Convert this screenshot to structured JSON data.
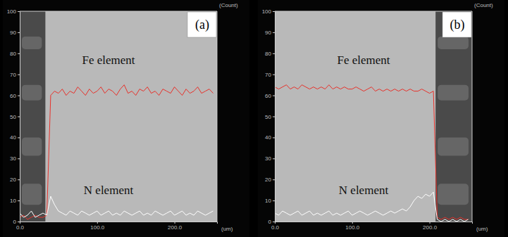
{
  "chart_data": [
    {
      "type": "line",
      "title": "(a)",
      "x_label": "(um)",
      "y_label": "(Count)",
      "x": [
        0,
        5,
        10,
        15,
        20,
        25,
        30,
        35,
        40,
        45,
        50,
        55,
        60,
        65,
        70,
        75,
        80,
        85,
        90,
        95,
        100,
        105,
        110,
        115,
        120,
        125,
        130,
        135,
        140,
        145,
        150,
        155,
        160,
        165,
        170,
        175,
        180,
        185,
        190,
        195,
        200,
        205,
        210,
        215,
        220,
        225,
        230,
        235,
        240,
        245,
        250
      ],
      "series": [
        {
          "name": "Fe element",
          "color": "#e8312a",
          "values": [
            2,
            3,
            1,
            2,
            3,
            2,
            2,
            3,
            60,
            62,
            61,
            63,
            60,
            62,
            61,
            64,
            62,
            60,
            63,
            61,
            62,
            64,
            61,
            63,
            62,
            60,
            63,
            65,
            61,
            62,
            60,
            63,
            62,
            64,
            61,
            62,
            60,
            63,
            62,
            61,
            64,
            62,
            60,
            63,
            61,
            62,
            64,
            61,
            62,
            63,
            61
          ]
        },
        {
          "name": "N element",
          "color": "#ffffff",
          "values": [
            4,
            2,
            3,
            5,
            2,
            3,
            4,
            3,
            12,
            8,
            5,
            4,
            3,
            5,
            4,
            3,
            5,
            4,
            3,
            4,
            5,
            3,
            4,
            5,
            3,
            4,
            3,
            5,
            4,
            3,
            4,
            5,
            3,
            4,
            3,
            5,
            4,
            3,
            4,
            5,
            3,
            4,
            5,
            3,
            4,
            3,
            5,
            4,
            3,
            4,
            5
          ]
        }
      ],
      "xlim": [
        0,
        255
      ],
      "xticks": [
        {
          "value": 0,
          "label": "0.0"
        },
        {
          "value": 100,
          "label": "100.0"
        },
        {
          "value": 200,
          "label": "200.0"
        }
      ],
      "ylim": [
        0,
        100
      ],
      "yticks": [
        0,
        10,
        20,
        30,
        40,
        50,
        60,
        70,
        80,
        90,
        100
      ],
      "grid": false
    },
    {
      "type": "line",
      "title": "(b)",
      "x_label": "(um)",
      "y_label": "(Count)",
      "x": [
        0,
        5,
        10,
        15,
        20,
        25,
        30,
        35,
        40,
        45,
        50,
        55,
        60,
        65,
        70,
        75,
        80,
        85,
        90,
        95,
        100,
        105,
        110,
        115,
        120,
        125,
        130,
        135,
        140,
        145,
        150,
        155,
        160,
        165,
        170,
        175,
        180,
        185,
        190,
        195,
        200,
        205,
        210,
        215,
        220,
        225,
        230,
        235,
        240,
        245,
        250
      ],
      "series": [
        {
          "name": "Fe element",
          "color": "#e8312a",
          "values": [
            64,
            63,
            64,
            65,
            63,
            64,
            63,
            65,
            64,
            63,
            64,
            63,
            64,
            63,
            65,
            63,
            64,
            63,
            64,
            63,
            63,
            64,
            63,
            62,
            63,
            64,
            62,
            63,
            62,
            63,
            62,
            63,
            62,
            63,
            62,
            63,
            62,
            62,
            63,
            62,
            61,
            62,
            2,
            1,
            2,
            1,
            2,
            1,
            2,
            1,
            1
          ]
        },
        {
          "name": "N element",
          "color": "#ffffff",
          "values": [
            4,
            3,
            5,
            4,
            3,
            4,
            5,
            3,
            4,
            5,
            3,
            4,
            3,
            4,
            5,
            3,
            4,
            3,
            4,
            5,
            3,
            4,
            5,
            4,
            3,
            4,
            5,
            4,
            3,
            4,
            5,
            4,
            5,
            6,
            5,
            7,
            10,
            12,
            11,
            13,
            12,
            14,
            1,
            0,
            1,
            0,
            1,
            0,
            1,
            0,
            1
          ]
        }
      ],
      "xlim": [
        0,
        255
      ],
      "xticks": [
        {
          "value": 0,
          "label": "0.0"
        },
        {
          "value": 100,
          "label": "100.0"
        },
        {
          "value": 200,
          "label": "200.0"
        }
      ],
      "ylim": [
        0,
        100
      ],
      "yticks": [
        0,
        10,
        20,
        30,
        40,
        50,
        60,
        70,
        80,
        90,
        100
      ],
      "grid": false
    }
  ]
}
